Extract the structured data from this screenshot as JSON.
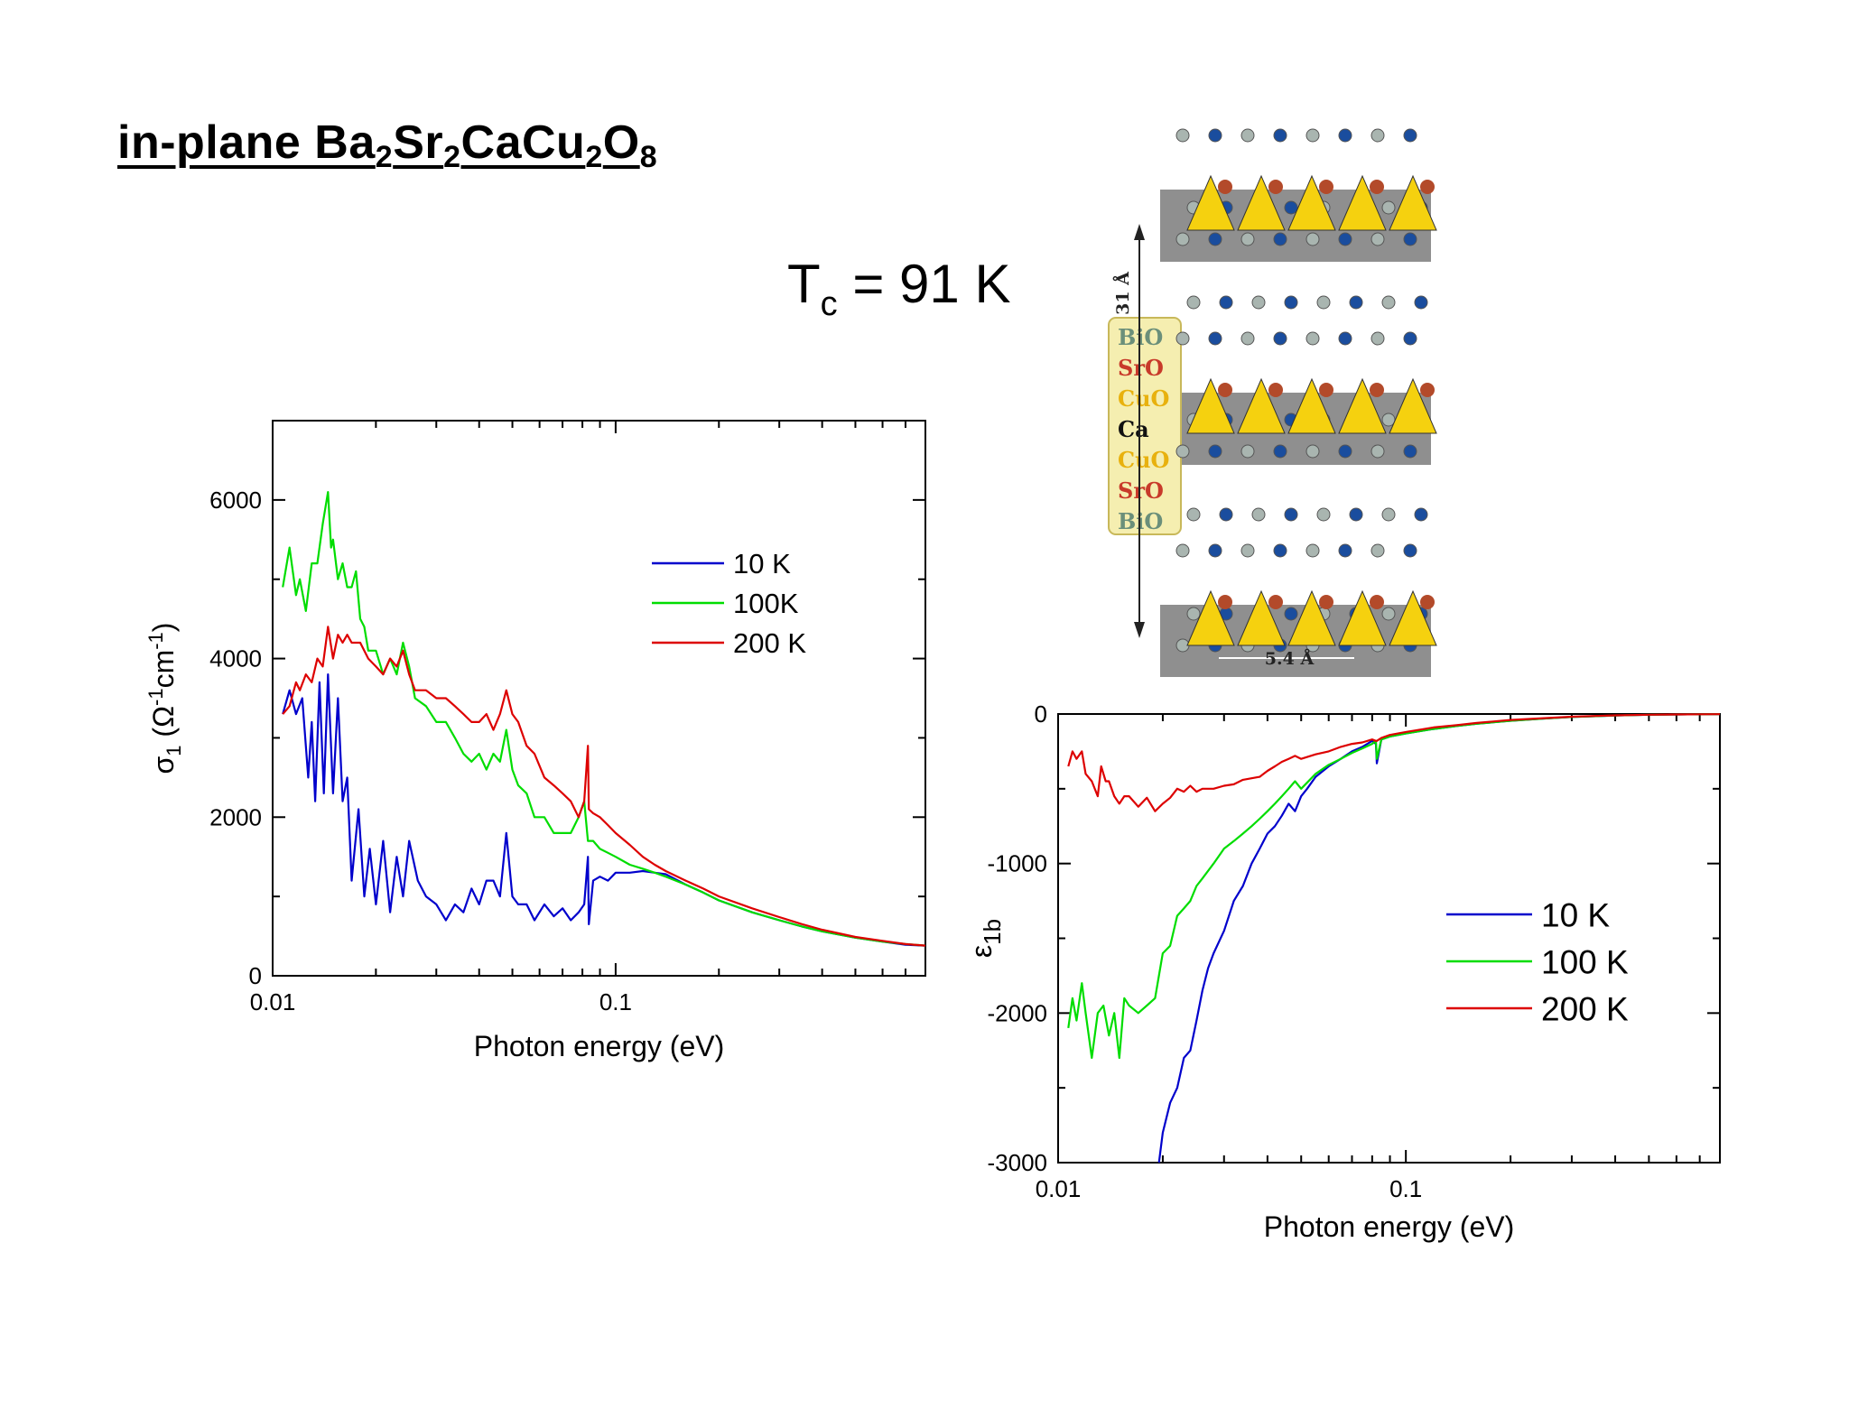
{
  "slide": {
    "title_parts": [
      "in-plane Ba",
      "2",
      "Sr",
      "2",
      "CaCu",
      "2",
      "O",
      "8"
    ],
    "tc_parts": [
      "T",
      "c",
      " = 91 K"
    ]
  },
  "structure": {
    "layers": [
      {
        "text": "BiO",
        "color": "#6b8f7a"
      },
      {
        "text": "SrO",
        "color": "#c83a2a"
      },
      {
        "text": "CuO",
        "color": "#e8b10e"
      },
      {
        "text": "Ca",
        "color": "#111111"
      },
      {
        "text": "CuO",
        "color": "#e8b10e"
      },
      {
        "text": "SrO",
        "color": "#c83a2a"
      },
      {
        "text": "BiO",
        "color": "#6b8f7a"
      }
    ],
    "c_axis_label": "31 Å",
    "a_axis_label": "5.4 Å"
  },
  "chart_data": [
    {
      "type": "line",
      "id": "sigma1",
      "xlabel": "Photon energy (eV)",
      "ylabel_parts": [
        "σ",
        "1",
        " (Ω",
        "-1",
        "cm",
        "-1",
        ")"
      ],
      "xscale": "log",
      "xlim": [
        0.01,
        0.8
      ],
      "ylim": [
        0,
        7000
      ],
      "xtick_labels": [
        {
          "value": 0.01,
          "label": "0.01"
        },
        {
          "value": 0.1,
          "label": "0.1"
        }
      ],
      "ytick_labels": [
        {
          "value": 0,
          "label": "0"
        },
        {
          "value": 2000,
          "label": "2000"
        },
        {
          "value": 4000,
          "label": "4000"
        },
        {
          "value": 6000,
          "label": "6000"
        }
      ],
      "legend_position": "upper-right",
      "series": [
        {
          "name": "10 K",
          "color": "#0000cc",
          "x": [
            0.0107,
            0.0112,
            0.0117,
            0.0122,
            0.0127,
            0.013,
            0.0133,
            0.0137,
            0.0141,
            0.0145,
            0.015,
            0.0155,
            0.016,
            0.0165,
            0.017,
            0.0178,
            0.0185,
            0.0192,
            0.02,
            0.021,
            0.022,
            0.023,
            0.024,
            0.025,
            0.0265,
            0.028,
            0.03,
            0.032,
            0.034,
            0.036,
            0.038,
            0.04,
            0.042,
            0.044,
            0.046,
            0.048,
            0.05,
            0.052,
            0.055,
            0.058,
            0.062,
            0.066,
            0.07,
            0.074,
            0.078,
            0.081,
            0.083,
            0.0835,
            0.086,
            0.09,
            0.095,
            0.1,
            0.11,
            0.12,
            0.13,
            0.14,
            0.16,
            0.18,
            0.2,
            0.25,
            0.3,
            0.35,
            0.4,
            0.5,
            0.6,
            0.7,
            0.8
          ],
          "y": [
            3300,
            3600,
            3300,
            3500,
            2500,
            3200,
            2200,
            3700,
            2300,
            3800,
            2300,
            3500,
            2200,
            2500,
            1200,
            2100,
            1000,
            1600,
            900,
            1700,
            800,
            1500,
            1000,
            1700,
            1200,
            1000,
            900,
            700,
            900,
            800,
            1100,
            900,
            1200,
            1200,
            1000,
            1800,
            1000,
            900,
            900,
            700,
            900,
            750,
            850,
            700,
            800,
            900,
            1500,
            650,
            1200,
            1250,
            1200,
            1300,
            1300,
            1320,
            1300,
            1280,
            1150,
            1050,
            950,
            800,
            700,
            620,
            560,
            480,
            430,
            390,
            380
          ]
        },
        {
          "name": "100K",
          "color": "#00dd00",
          "x": [
            0.0107,
            0.0112,
            0.0117,
            0.012,
            0.0125,
            0.013,
            0.0135,
            0.014,
            0.0145,
            0.0148,
            0.015,
            0.0155,
            0.016,
            0.0165,
            0.017,
            0.0175,
            0.018,
            0.0185,
            0.019,
            0.02,
            0.021,
            0.022,
            0.023,
            0.024,
            0.025,
            0.026,
            0.028,
            0.03,
            0.032,
            0.034,
            0.036,
            0.038,
            0.04,
            0.042,
            0.044,
            0.046,
            0.048,
            0.05,
            0.052,
            0.055,
            0.058,
            0.062,
            0.066,
            0.07,
            0.074,
            0.078,
            0.081,
            0.083,
            0.0835,
            0.086,
            0.09,
            0.095,
            0.1,
            0.11,
            0.12,
            0.13,
            0.14,
            0.16,
            0.18,
            0.2,
            0.25,
            0.3,
            0.35,
            0.4,
            0.5,
            0.6,
            0.7,
            0.8
          ],
          "y": [
            4900,
            5400,
            4800,
            5000,
            4600,
            5200,
            5200,
            5700,
            6100,
            5400,
            5500,
            5000,
            5200,
            4900,
            4900,
            5100,
            4500,
            4400,
            4100,
            4100,
            3800,
            4000,
            3800,
            4200,
            3900,
            3500,
            3400,
            3200,
            3200,
            3000,
            2800,
            2700,
            2800,
            2600,
            2800,
            2700,
            3100,
            2600,
            2400,
            2300,
            2000,
            2000,
            1800,
            1800,
            1800,
            2000,
            2200,
            1700,
            1700,
            1700,
            1600,
            1550,
            1500,
            1400,
            1350,
            1300,
            1250,
            1150,
            1050,
            950,
            800,
            700,
            620,
            560,
            480,
            430,
            400,
            380
          ]
        },
        {
          "name": "200 K",
          "color": "#dd0000",
          "x": [
            0.0107,
            0.0112,
            0.0117,
            0.012,
            0.0125,
            0.013,
            0.0135,
            0.014,
            0.0145,
            0.015,
            0.0155,
            0.016,
            0.0165,
            0.017,
            0.018,
            0.019,
            0.02,
            0.021,
            0.022,
            0.023,
            0.024,
            0.025,
            0.026,
            0.028,
            0.03,
            0.032,
            0.034,
            0.036,
            0.038,
            0.04,
            0.042,
            0.044,
            0.046,
            0.048,
            0.05,
            0.052,
            0.055,
            0.058,
            0.062,
            0.066,
            0.07,
            0.074,
            0.078,
            0.081,
            0.083,
            0.0835,
            0.086,
            0.09,
            0.095,
            0.1,
            0.11,
            0.12,
            0.13,
            0.14,
            0.16,
            0.18,
            0.2,
            0.25,
            0.3,
            0.35,
            0.4,
            0.5,
            0.6,
            0.7,
            0.8
          ],
          "y": [
            3300,
            3400,
            3700,
            3600,
            3800,
            3700,
            4000,
            3900,
            4400,
            4000,
            4300,
            4200,
            4300,
            4200,
            4200,
            4000,
            3900,
            3800,
            4000,
            3900,
            4100,
            3800,
            3600,
            3600,
            3500,
            3500,
            3400,
            3300,
            3200,
            3200,
            3300,
            3100,
            3300,
            3600,
            3300,
            3200,
            2900,
            2800,
            2500,
            2400,
            2300,
            2200,
            2000,
            2200,
            2900,
            2100,
            2050,
            2000,
            1900,
            1800,
            1650,
            1500,
            1400,
            1320,
            1200,
            1100,
            1000,
            850,
            740,
            650,
            580,
            490,
            440,
            400,
            380
          ]
        }
      ]
    },
    {
      "type": "line",
      "id": "eps1b",
      "xlabel": "Photon energy (eV)",
      "ylabel_parts": [
        "ε",
        "1b"
      ],
      "xscale": "log",
      "xlim": [
        0.01,
        0.8
      ],
      "ylim": [
        -3000,
        0
      ],
      "xtick_labels": [
        {
          "value": 0.01,
          "label": "0.01"
        },
        {
          "value": 0.1,
          "label": "0.1"
        }
      ],
      "ytick_labels": [
        {
          "value": 0,
          "label": "0"
        },
        {
          "value": -1000,
          "label": "-1000"
        },
        {
          "value": -2000,
          "label": "-2000"
        },
        {
          "value": -3000,
          "label": "-3000"
        }
      ],
      "legend_position": "right",
      "series": [
        {
          "name": "10 K",
          "color": "#0000cc",
          "x": [
            0.0195,
            0.02,
            0.021,
            0.022,
            0.023,
            0.024,
            0.025,
            0.026,
            0.027,
            0.028,
            0.03,
            0.032,
            0.034,
            0.036,
            0.038,
            0.04,
            0.042,
            0.044,
            0.046,
            0.048,
            0.05,
            0.052,
            0.055,
            0.06,
            0.065,
            0.07,
            0.075,
            0.08,
            0.082,
            0.0825,
            0.085,
            0.09,
            0.1,
            0.12,
            0.14,
            0.16,
            0.2,
            0.25,
            0.3,
            0.4,
            0.5,
            0.6,
            0.7,
            0.8
          ],
          "y": [
            -3000,
            -2800,
            -2600,
            -2500,
            -2300,
            -2250,
            -2050,
            -1850,
            -1700,
            -1600,
            -1450,
            -1250,
            -1150,
            -1000,
            -900,
            -800,
            -750,
            -680,
            -600,
            -650,
            -550,
            -500,
            -420,
            -350,
            -300,
            -250,
            -220,
            -180,
            -200,
            -330,
            -170,
            -150,
            -130,
            -100,
            -80,
            -65,
            -45,
            -30,
            -20,
            -10,
            -5,
            -3,
            -2,
            -1
          ]
        },
        {
          "name": "100 K",
          "color": "#00dd00",
          "x": [
            0.0107,
            0.011,
            0.0113,
            0.0117,
            0.012,
            0.0125,
            0.013,
            0.0135,
            0.014,
            0.0145,
            0.015,
            0.0155,
            0.016,
            0.017,
            0.018,
            0.019,
            0.02,
            0.021,
            0.022,
            0.023,
            0.024,
            0.025,
            0.026,
            0.028,
            0.03,
            0.032,
            0.034,
            0.036,
            0.038,
            0.04,
            0.042,
            0.044,
            0.046,
            0.048,
            0.05,
            0.055,
            0.06,
            0.065,
            0.07,
            0.075,
            0.08,
            0.082,
            0.0825,
            0.085,
            0.09,
            0.1,
            0.12,
            0.14,
            0.16,
            0.2,
            0.25,
            0.3,
            0.4,
            0.5,
            0.6,
            0.7,
            0.8
          ],
          "y": [
            -2100,
            -1900,
            -2050,
            -1800,
            -2000,
            -2300,
            -2000,
            -1950,
            -2150,
            -2000,
            -2300,
            -1900,
            -1950,
            -2000,
            -1950,
            -1900,
            -1600,
            -1550,
            -1350,
            -1300,
            -1250,
            -1150,
            -1100,
            -1000,
            -900,
            -850,
            -800,
            -750,
            -700,
            -650,
            -600,
            -550,
            -500,
            -450,
            -500,
            -400,
            -340,
            -300,
            -260,
            -230,
            -200,
            -180,
            -300,
            -170,
            -150,
            -130,
            -100,
            -80,
            -65,
            -45,
            -30,
            -20,
            -10,
            -5,
            -3,
            -2,
            -1
          ]
        },
        {
          "name": "200 K",
          "color": "#dd0000",
          "x": [
            0.0107,
            0.011,
            0.0113,
            0.0117,
            0.012,
            0.0125,
            0.013,
            0.0133,
            0.0137,
            0.014,
            0.0145,
            0.015,
            0.0155,
            0.016,
            0.017,
            0.018,
            0.019,
            0.02,
            0.021,
            0.022,
            0.023,
            0.024,
            0.025,
            0.026,
            0.028,
            0.03,
            0.032,
            0.034,
            0.036,
            0.038,
            0.04,
            0.042,
            0.044,
            0.046,
            0.048,
            0.05,
            0.055,
            0.06,
            0.065,
            0.07,
            0.075,
            0.08,
            0.082,
            0.0825,
            0.085,
            0.09,
            0.1,
            0.12,
            0.14,
            0.16,
            0.2,
            0.25,
            0.3,
            0.4,
            0.5,
            0.6,
            0.7,
            0.8
          ],
          "y": [
            -350,
            -250,
            -300,
            -250,
            -400,
            -450,
            -550,
            -350,
            -450,
            -450,
            -550,
            -600,
            -550,
            -550,
            -620,
            -560,
            -650,
            -600,
            -560,
            -500,
            -520,
            -480,
            -520,
            -500,
            -500,
            -480,
            -470,
            -440,
            -430,
            -420,
            -380,
            -350,
            -320,
            -300,
            -280,
            -300,
            -270,
            -250,
            -220,
            -200,
            -190,
            -170,
            -180,
            -180,
            -160,
            -140,
            -120,
            -90,
            -75,
            -60,
            -40,
            -28,
            -18,
            -9,
            -5,
            -3,
            -2,
            -1
          ]
        }
      ]
    }
  ]
}
